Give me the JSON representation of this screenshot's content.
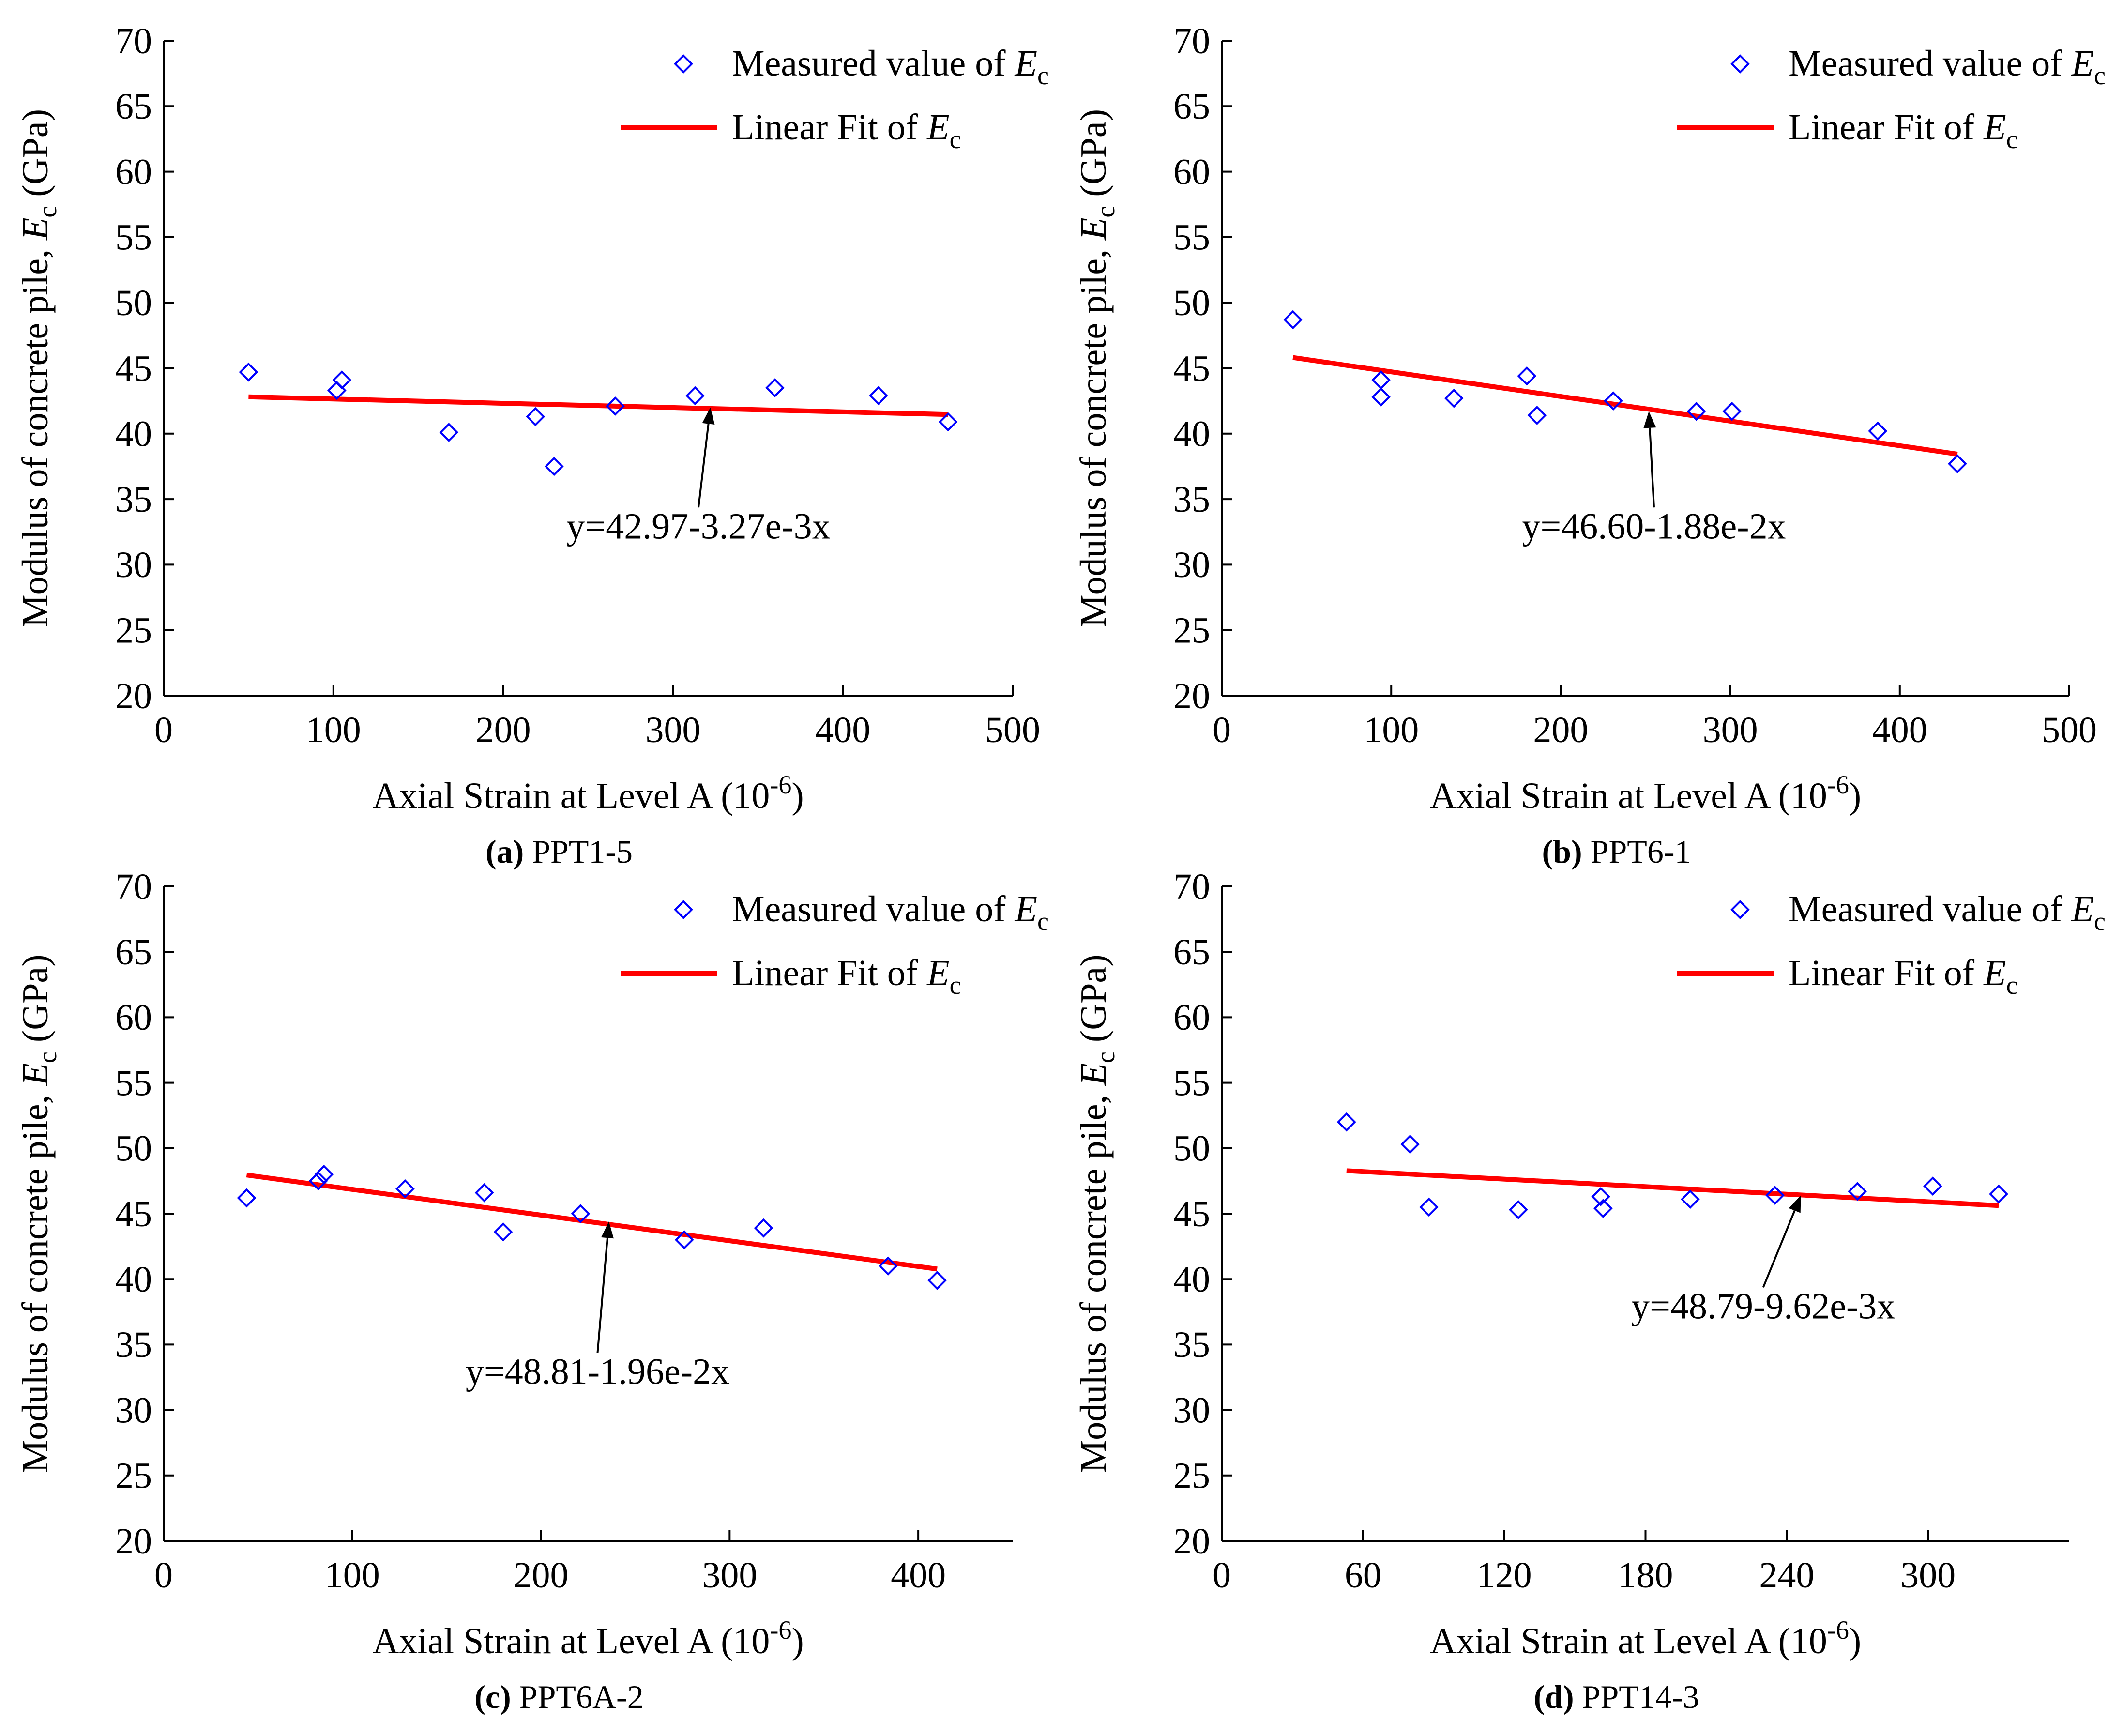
{
  "colors": {
    "marker": "#0000ff",
    "fit_line": "#ff0000",
    "axis": "#000000",
    "annotation": "#000000"
  },
  "chart_data": [
    {
      "panel_id": "a",
      "type": "scatter",
      "caption": {
        "letter": "(a)",
        "text": " PPT1-5"
      },
      "xlabel": "Axial Strain at Level A (10",
      "xlabel_exp": "-6",
      "xlabel_close": ")",
      "ylabel": "Modulus of concrete pile, ",
      "ylabel_var": "E",
      "ylabel_sub": "c",
      "ylabel_unit": " (GPa)",
      "xlim": [
        0,
        500
      ],
      "ylim": [
        20,
        70
      ],
      "xticks": [
        0,
        100,
        200,
        300,
        400,
        500
      ],
      "yticks": [
        20,
        25,
        30,
        35,
        40,
        45,
        50,
        55,
        60,
        65,
        70
      ],
      "grid": false,
      "legend_position": "top-right",
      "legend": [
        {
          "marker": "diamond",
          "label": "Measured value of ",
          "var": "E",
          "sub": "c"
        },
        {
          "marker": "line",
          "label": "Linear Fit of ",
          "var": "E",
          "sub": "c"
        }
      ],
      "series": [
        {
          "kind": "points",
          "x": [
            50,
            102,
            105,
            168,
            219,
            230,
            266,
            313,
            360,
            421,
            462
          ],
          "y": [
            44.7,
            43.3,
            44.1,
            40.1,
            41.3,
            37.5,
            42.1,
            42.9,
            43.5,
            42.9,
            40.9
          ]
        }
      ],
      "fit": {
        "x": [
          50,
          462
        ],
        "y": [
          42.81,
          41.46
        ]
      },
      "annotation": {
        "text": "y=42.97-3.27e-3x",
        "target": [
          322,
          42.0
        ],
        "label_at": [
          315,
          32.0
        ]
      }
    },
    {
      "panel_id": "b",
      "type": "scatter",
      "caption": {
        "letter": "(b)",
        "text": " PPT6-1"
      },
      "xlabel": "Axial Strain at Level A (10",
      "xlabel_exp": "-6",
      "xlabel_close": ")",
      "ylabel": "Modulus of concrete pile, ",
      "ylabel_var": "E",
      "ylabel_sub": "c",
      "ylabel_unit": " (GPa)",
      "xlim": [
        0,
        500
      ],
      "ylim": [
        20,
        70
      ],
      "xticks": [
        0,
        100,
        200,
        300,
        400,
        500
      ],
      "yticks": [
        20,
        25,
        30,
        35,
        40,
        45,
        50,
        55,
        60,
        65,
        70
      ],
      "grid": false,
      "legend_position": "top-right",
      "legend": [
        {
          "marker": "diamond",
          "label": "Measured value of ",
          "var": "E",
          "sub": "c"
        },
        {
          "marker": "line",
          "label": "Linear Fit of ",
          "var": "E",
          "sub": "c"
        }
      ],
      "series": [
        {
          "kind": "points",
          "x": [
            42,
            94,
            94,
            137,
            180,
            186,
            231,
            280,
            301,
            387,
            434
          ],
          "y": [
            48.7,
            44.1,
            42.8,
            42.7,
            44.4,
            41.4,
            42.5,
            41.7,
            41.7,
            40.2,
            37.7
          ]
        }
      ],
      "fit": {
        "x": [
          42,
          434
        ],
        "y": [
          45.81,
          38.44
        ]
      },
      "annotation": {
        "text": "y=46.60-1.88e-2x",
        "target": [
          252,
          41.7
        ],
        "label_at": [
          255,
          32.0
        ]
      }
    },
    {
      "panel_id": "c",
      "type": "scatter",
      "caption": {
        "letter": "(c)",
        "text": " PPT6A-2"
      },
      "xlabel": "Axial Strain at Level A (10",
      "xlabel_exp": "-6",
      "xlabel_close": ")",
      "ylabel": "Modulus of concrete pile, ",
      "ylabel_var": "E",
      "ylabel_sub": "c",
      "ylabel_unit": " (GPa)",
      "xlim": [
        0,
        450
      ],
      "ylim": [
        20,
        70
      ],
      "xticks": [
        0,
        100,
        200,
        300,
        400
      ],
      "yticks": [
        20,
        25,
        30,
        35,
        40,
        45,
        50,
        55,
        60,
        65,
        70
      ],
      "grid": false,
      "legend_position": "top-right",
      "legend": [
        {
          "marker": "diamond",
          "label": "Measured value of ",
          "var": "E",
          "sub": "c"
        },
        {
          "marker": "line",
          "label": "Linear Fit of ",
          "var": "E",
          "sub": "c"
        }
      ],
      "series": [
        {
          "kind": "points",
          "x": [
            44,
            82,
            85,
            128,
            170,
            180,
            221,
            276,
            318,
            384,
            410
          ],
          "y": [
            46.2,
            47.5,
            48.0,
            46.9,
            46.6,
            43.6,
            45.0,
            43.0,
            43.9,
            41.0,
            39.9
          ]
        }
      ],
      "fit": {
        "x": [
          44,
          410
        ],
        "y": [
          47.95,
          40.77
        ]
      },
      "annotation": {
        "text": "y=48.81-1.96e-2x",
        "target": [
          236,
          44.4
        ],
        "label_at": [
          230,
          32.0
        ]
      }
    },
    {
      "panel_id": "d",
      "type": "scatter",
      "caption": {
        "letter": "(d)",
        "text": " PPT14-3"
      },
      "xlabel": "Axial Strain at Level A (10",
      "xlabel_exp": "-6",
      "xlabel_close": ")",
      "ylabel": "Modulus of concrete pile, ",
      "ylabel_var": "E",
      "ylabel_sub": "c",
      "ylabel_unit": " (GPa)",
      "xlim": [
        0,
        360
      ],
      "ylim": [
        20,
        70
      ],
      "xticks": [
        0,
        60,
        120,
        180,
        240,
        300
      ],
      "yticks": [
        20,
        25,
        30,
        35,
        40,
        45,
        50,
        55,
        60,
        65,
        70
      ],
      "grid": false,
      "legend_position": "top-right",
      "legend": [
        {
          "marker": "diamond",
          "label": "Measured value of ",
          "var": "E",
          "sub": "c"
        },
        {
          "marker": "line",
          "label": "Linear Fit of ",
          "var": "E",
          "sub": "c"
        }
      ],
      "series": [
        {
          "kind": "points",
          "x": [
            53,
            80,
            88,
            126,
            161,
            162,
            199,
            235,
            270,
            302,
            330
          ],
          "y": [
            52.0,
            50.3,
            45.5,
            45.3,
            46.3,
            45.4,
            46.1,
            46.4,
            46.7,
            47.1,
            46.5
          ]
        }
      ],
      "fit": {
        "x": [
          53,
          330
        ],
        "y": [
          48.28,
          45.62
        ]
      },
      "annotation": {
        "text": "y=48.79-9.62e-3x",
        "target": [
          246,
          46.4
        ],
        "label_at": [
          230,
          37.0
        ]
      }
    }
  ]
}
